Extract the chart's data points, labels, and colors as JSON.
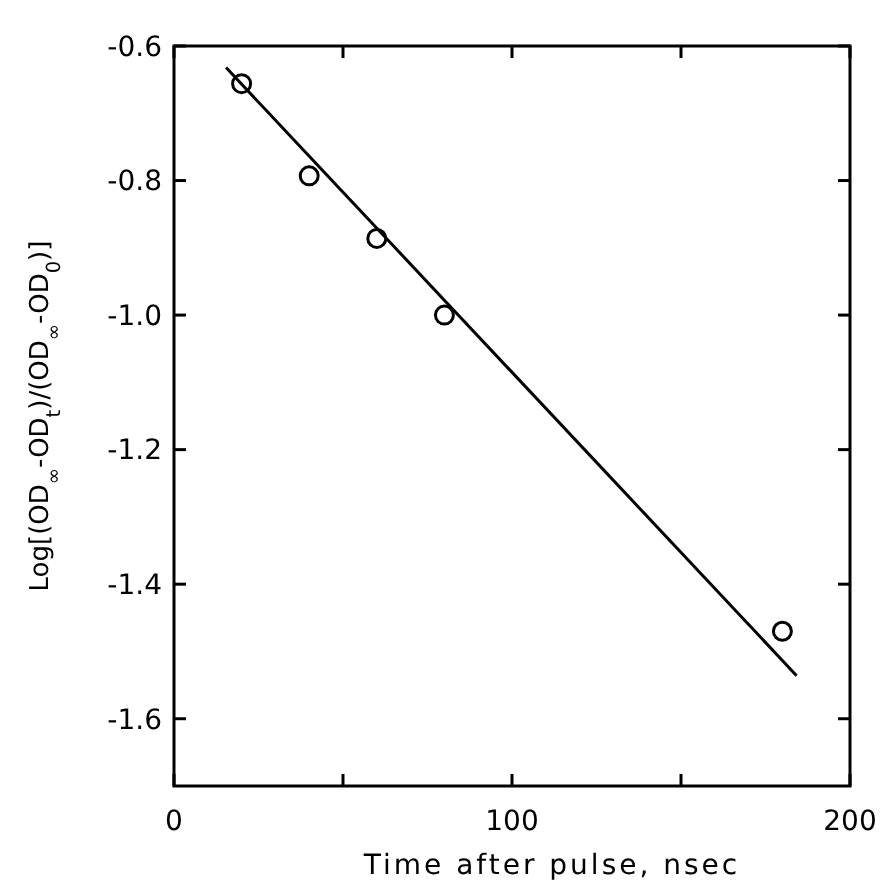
{
  "chart_data": {
    "type": "scatter",
    "xlabel": "Time after pulse, nsec",
    "ylabel": "Log[(OD$_{∞}$-OD$_{t}$)/(OD$_{∞}$-OD$_{0}$)]",
    "xlim": [
      0,
      200
    ],
    "xticks": [
      0,
      {
        "value": 50,
        "label": null
      },
      100,
      {
        "value": 150,
        "label": null
      },
      200
    ],
    "ylim": [
      -1.7,
      -0.6
    ],
    "yticks": [
      -0.6,
      -0.8,
      {
        "value": -1,
        "label": "-1.0"
      },
      -1.2,
      -1.4,
      -1.6
    ],
    "grid": false,
    "marker": "circle",
    "series": [
      {
        "color": "#000000",
        "x": [
          20,
          40,
          60,
          80,
          180
        ],
        "values": [
          -0.656,
          -0.793,
          -0.886,
          -1.0,
          -1.47
        ]
      },
      {
        "type": "line",
        "color": "#000000",
        "line_style": "solid",
        "marker": "none",
        "x": [
          15.4,
          184.2
        ],
        "values": [
          -0.632,
          -1.536
        ]
      }
    ]
  }
}
